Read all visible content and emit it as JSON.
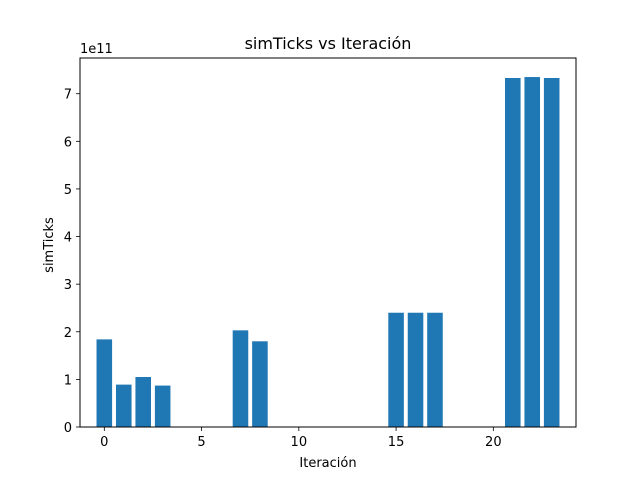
{
  "chart_data": {
    "type": "bar",
    "title": "simTicks vs Iteración",
    "xlabel": "Iteración",
    "ylabel": "simTicks",
    "y_offset_label": "1e11",
    "y_scale_exponent": 11,
    "color": "#1f77b4",
    "bar_width": 0.8,
    "xlim": [
      -1.25,
      24.25
    ],
    "ylim": [
      0,
      7.75
    ],
    "xticks": [
      0,
      5,
      10,
      15,
      20
    ],
    "yticks": [
      0,
      1,
      2,
      3,
      4,
      5,
      6,
      7
    ],
    "grid": false,
    "legend": "none",
    "bars": [
      {
        "x": 0,
        "value": 1.84
      },
      {
        "x": 1,
        "value": 0.89
      },
      {
        "x": 2,
        "value": 1.05
      },
      {
        "x": 3,
        "value": 0.87
      },
      {
        "x": 7,
        "value": 2.03
      },
      {
        "x": 8,
        "value": 1.8
      },
      {
        "x": 15,
        "value": 2.4
      },
      {
        "x": 16,
        "value": 2.4
      },
      {
        "x": 17,
        "value": 2.4
      },
      {
        "x": 21,
        "value": 7.33
      },
      {
        "x": 22,
        "value": 7.35
      },
      {
        "x": 23,
        "value": 7.33
      }
    ]
  }
}
